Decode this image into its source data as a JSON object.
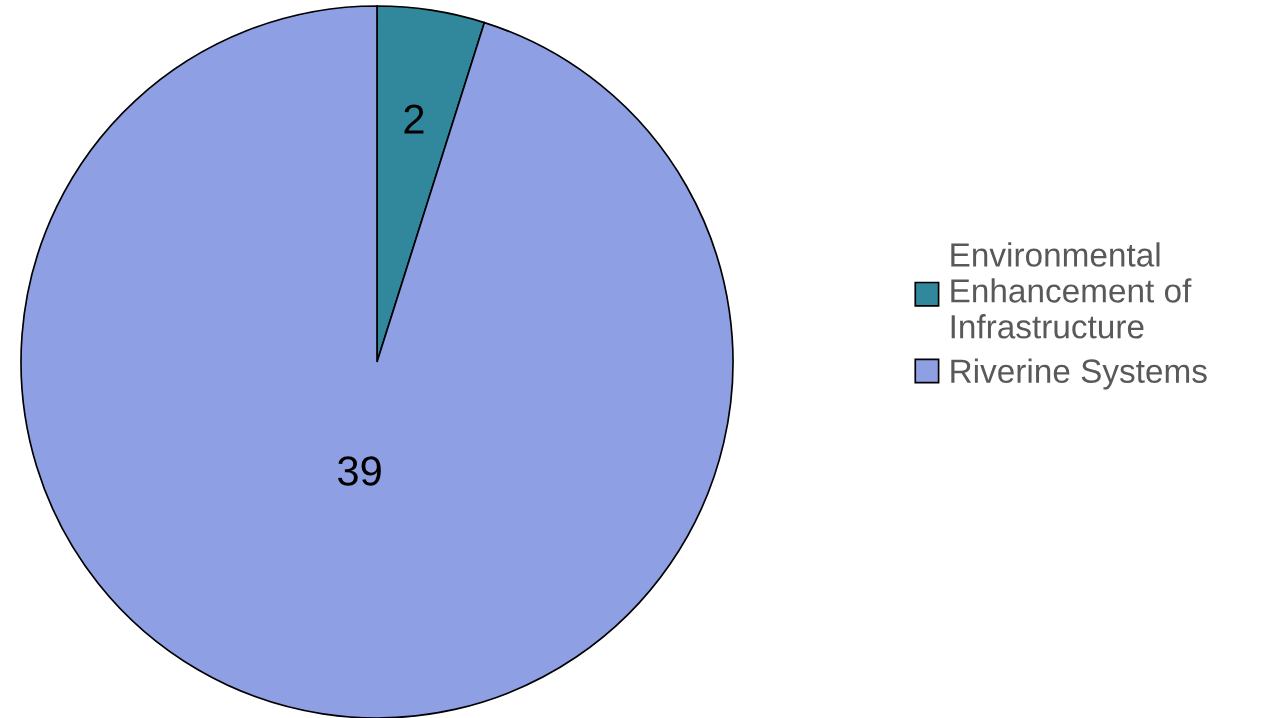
{
  "chart_data": {
    "type": "pie",
    "categories": [
      "Environmental Enhancement of Infrastructure",
      "Riverine Systems"
    ],
    "values": [
      2,
      39
    ],
    "colors": [
      "#31879b",
      "#8ea0e3"
    ],
    "data_labels": true,
    "legend": "right"
  }
}
